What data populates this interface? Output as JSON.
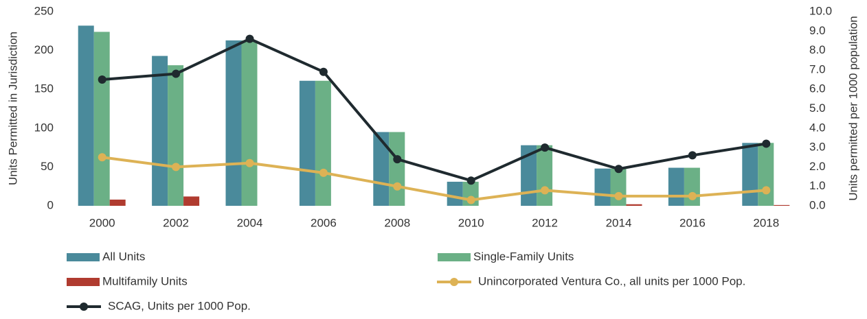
{
  "chart_data": {
    "type": "bar",
    "categories": [
      "2000",
      "2002",
      "2004",
      "2006",
      "2008",
      "2010",
      "2012",
      "2014",
      "2016",
      "2018"
    ],
    "ylabel": "Units Permitted in Jurisdiction",
    "y2label": "Units permitted per 1000 population",
    "ylim": [
      0,
      250
    ],
    "yticks": [
      0,
      50,
      100,
      150,
      200,
      250
    ],
    "y2lim": [
      0,
      10
    ],
    "y2ticks": [
      {
        "value": 0,
        "label": "0.0"
      },
      {
        "value": 1,
        "label": "1.0"
      },
      {
        "value": 2,
        "label": "2.0"
      },
      {
        "value": 3,
        "label": "3.0"
      },
      {
        "value": 4,
        "label": "4.0"
      },
      {
        "value": 5,
        "label": "5.0"
      },
      {
        "value": 6,
        "label": "6.0"
      },
      {
        "value": 7,
        "label": "7.0"
      },
      {
        "value": 8,
        "label": "8.0"
      },
      {
        "value": 9,
        "label": "9.0"
      },
      {
        "value": 10,
        "label": "10.0"
      }
    ],
    "series": [
      {
        "name": "All Units",
        "type": "bar",
        "color": "#4a8a9b",
        "values": [
          232,
          193,
          213,
          161,
          95,
          31,
          78,
          48,
          49,
          81
        ]
      },
      {
        "name": "Single-Family Units",
        "type": "bar",
        "color": "#6bb086",
        "values": [
          224,
          181,
          213,
          161,
          95,
          31,
          78,
          48,
          49,
          81
        ]
      },
      {
        "name": "Multifamily Units",
        "type": "bar",
        "color": "#b03b2f",
        "values": [
          8,
          12,
          0,
          0,
          0,
          0,
          0,
          2,
          0,
          1
        ]
      },
      {
        "name": "Unincorporated Ventura Co., all units per 1000 Pop.",
        "type": "line",
        "axis": "y2",
        "color": "#ddb255",
        "values": [
          2.5,
          2.0,
          2.2,
          1.7,
          1.0,
          0.3,
          0.8,
          0.5,
          0.5,
          0.8
        ]
      },
      {
        "name": "SCAG, Units per 1000 Pop.",
        "type": "line",
        "axis": "y2",
        "color": "#1f2a2f",
        "values": [
          6.5,
          6.8,
          8.6,
          6.9,
          2.4,
          1.3,
          3.0,
          1.9,
          2.6,
          3.2
        ]
      }
    ]
  }
}
